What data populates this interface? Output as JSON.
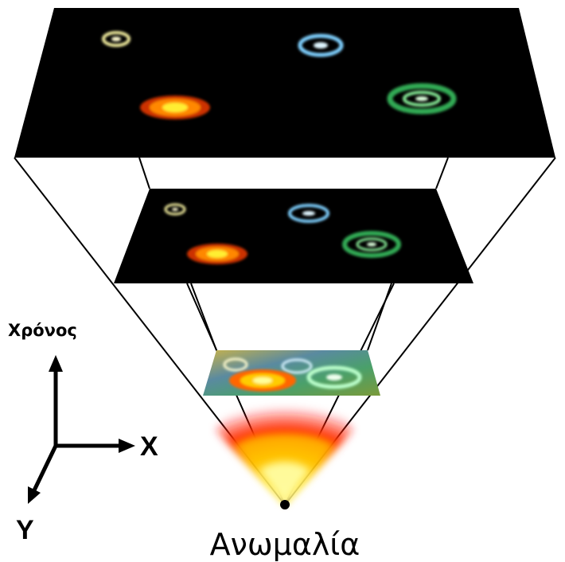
{
  "labels": {
    "time_axis": "Χρόνος",
    "x_axis": "X",
    "y_axis": "Y",
    "singularity": "Ανωμαλία"
  },
  "colors": {
    "space": "#000000",
    "outline": "#000000",
    "galaxy_yellow": "#f0e68c",
    "galaxy_blue": "#87cefa",
    "galaxy_orange": "#ff8c00",
    "galaxy_green": "#3cb371",
    "fireball_core": "#ffff66",
    "fireball_edge": "#ff0000"
  },
  "galaxies": [
    "yellow-galaxy",
    "blue-galaxy",
    "orange-galaxy",
    "green-galaxy"
  ]
}
